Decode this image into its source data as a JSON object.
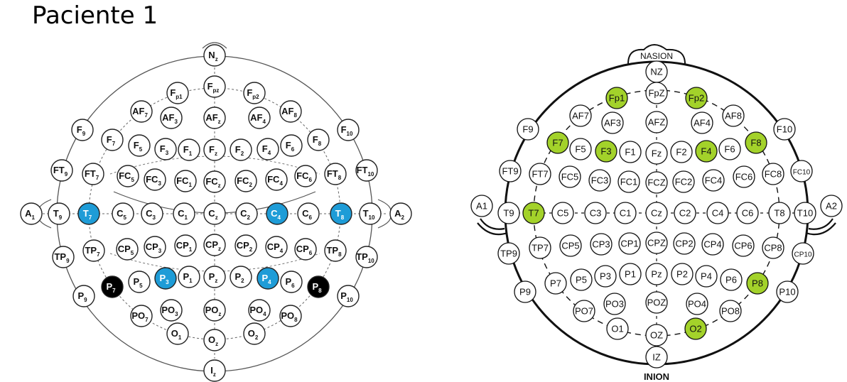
{
  "title": "Paciente 1",
  "colors": {
    "blue": "#1e9cd7",
    "black": "#000000",
    "green": "#a3d22a",
    "white": "#ffffff"
  },
  "left_map": {
    "highlighted_blue": [
      "T7",
      "C4",
      "T8",
      "P3",
      "P4"
    ],
    "highlighted_black": [
      "P7",
      "P8"
    ],
    "electrodes": [
      {
        "id": "Nz",
        "label": "N",
        "sub": "z"
      },
      {
        "id": "Fpz",
        "label": "F",
        "sub": "pz"
      },
      {
        "id": "Fp1",
        "label": "F",
        "sub": "p1"
      },
      {
        "id": "Fp2",
        "label": "F",
        "sub": "p2"
      },
      {
        "id": "AF7",
        "label": "AF",
        "sub": "7"
      },
      {
        "id": "AF3",
        "label": "AF",
        "sub": "3"
      },
      {
        "id": "AFz",
        "label": "AF",
        "sub": "z"
      },
      {
        "id": "AF4",
        "label": "AF",
        "sub": "4"
      },
      {
        "id": "AF8",
        "label": "AF",
        "sub": "8"
      },
      {
        "id": "F9",
        "label": "F",
        "sub": "9"
      },
      {
        "id": "F7",
        "label": "F",
        "sub": "7"
      },
      {
        "id": "F5",
        "label": "F",
        "sub": "5"
      },
      {
        "id": "F3",
        "label": "F",
        "sub": "3"
      },
      {
        "id": "F1",
        "label": "F",
        "sub": "1"
      },
      {
        "id": "Fz",
        "label": "F",
        "sub": "z"
      },
      {
        "id": "F2",
        "label": "F",
        "sub": "2"
      },
      {
        "id": "F4",
        "label": "F",
        "sub": "4"
      },
      {
        "id": "F6",
        "label": "F",
        "sub": "6"
      },
      {
        "id": "F8",
        "label": "F",
        "sub": "8"
      },
      {
        "id": "F10",
        "label": "F",
        "sub": "10"
      },
      {
        "id": "FT9",
        "label": "FT",
        "sub": "9"
      },
      {
        "id": "FT7",
        "label": "FT",
        "sub": "7"
      },
      {
        "id": "FC5",
        "label": "FC",
        "sub": "5"
      },
      {
        "id": "FC3",
        "label": "FC",
        "sub": "3"
      },
      {
        "id": "FC1",
        "label": "FC",
        "sub": "1"
      },
      {
        "id": "FCz",
        "label": "FC",
        "sub": "z"
      },
      {
        "id": "FC2",
        "label": "FC",
        "sub": "2"
      },
      {
        "id": "FC4",
        "label": "FC",
        "sub": "4"
      },
      {
        "id": "FC6",
        "label": "FC",
        "sub": "6"
      },
      {
        "id": "FT8",
        "label": "FT",
        "sub": "8"
      },
      {
        "id": "FT10",
        "label": "FT",
        "sub": "10"
      },
      {
        "id": "A1",
        "label": "A",
        "sub": "1"
      },
      {
        "id": "T9",
        "label": "T",
        "sub": "9"
      },
      {
        "id": "T7",
        "label": "T",
        "sub": "7"
      },
      {
        "id": "C5",
        "label": "C",
        "sub": "5"
      },
      {
        "id": "C3",
        "label": "C",
        "sub": "3"
      },
      {
        "id": "C1",
        "label": "C",
        "sub": "1"
      },
      {
        "id": "Cz",
        "label": "C",
        "sub": "z"
      },
      {
        "id": "C2",
        "label": "C",
        "sub": "2"
      },
      {
        "id": "C4",
        "label": "C",
        "sub": "4"
      },
      {
        "id": "C6",
        "label": "C",
        "sub": "6"
      },
      {
        "id": "T8",
        "label": "T",
        "sub": "8"
      },
      {
        "id": "T10",
        "label": "T",
        "sub": "10"
      },
      {
        "id": "A2",
        "label": "A",
        "sub": "2"
      },
      {
        "id": "TP9",
        "label": "TP",
        "sub": "9"
      },
      {
        "id": "TP7",
        "label": "TP",
        "sub": "7"
      },
      {
        "id": "CP5",
        "label": "CP",
        "sub": "5"
      },
      {
        "id": "CP3",
        "label": "CP",
        "sub": "3"
      },
      {
        "id": "CP1",
        "label": "CP",
        "sub": "1"
      },
      {
        "id": "CPz",
        "label": "CP",
        "sub": "z"
      },
      {
        "id": "CP2",
        "label": "CP",
        "sub": "2"
      },
      {
        "id": "CP4",
        "label": "CP",
        "sub": "4"
      },
      {
        "id": "CP6",
        "label": "CP",
        "sub": "6"
      },
      {
        "id": "TP8",
        "label": "TP",
        "sub": "8"
      },
      {
        "id": "TP10",
        "label": "TP",
        "sub": "10"
      },
      {
        "id": "P9",
        "label": "P",
        "sub": "9"
      },
      {
        "id": "P7",
        "label": "P",
        "sub": "7"
      },
      {
        "id": "P5",
        "label": "P",
        "sub": "5"
      },
      {
        "id": "P3",
        "label": "P",
        "sub": "3"
      },
      {
        "id": "P1",
        "label": "P",
        "sub": "1"
      },
      {
        "id": "Pz",
        "label": "P",
        "sub": "z"
      },
      {
        "id": "P2",
        "label": "P",
        "sub": "2"
      },
      {
        "id": "P4",
        "label": "P",
        "sub": "4"
      },
      {
        "id": "P6",
        "label": "P",
        "sub": "6"
      },
      {
        "id": "P8",
        "label": "P",
        "sub": "8"
      },
      {
        "id": "P10",
        "label": "P",
        "sub": "10"
      },
      {
        "id": "PO7",
        "label": "PO",
        "sub": "7"
      },
      {
        "id": "PO3",
        "label": "PO",
        "sub": "3"
      },
      {
        "id": "POz",
        "label": "PO",
        "sub": "z"
      },
      {
        "id": "PO4",
        "label": "PO",
        "sub": "4"
      },
      {
        "id": "PO8",
        "label": "PO",
        "sub": "8"
      },
      {
        "id": "O1",
        "label": "O",
        "sub": "1"
      },
      {
        "id": "Oz",
        "label": "O",
        "sub": "z"
      },
      {
        "id": "O2",
        "label": "O",
        "sub": "2"
      },
      {
        "id": "Iz",
        "label": "I",
        "sub": "z"
      }
    ]
  },
  "right_map": {
    "top_label": "NASION",
    "bottom_label": "INION",
    "highlighted_green": [
      "Fp1",
      "Fp2",
      "F7",
      "F3",
      "F4",
      "F8",
      "T7",
      "P8",
      "O2"
    ],
    "electrodes": [
      {
        "id": "NZ",
        "label": "NZ"
      },
      {
        "id": "Fp1",
        "label": "Fp1"
      },
      {
        "id": "FpZ",
        "label": "FpZ"
      },
      {
        "id": "Fp2",
        "label": "Fp2"
      },
      {
        "id": "AF7",
        "label": "AF7"
      },
      {
        "id": "AF3",
        "label": "AF3"
      },
      {
        "id": "AFZ",
        "label": "AFZ"
      },
      {
        "id": "AF4",
        "label": "AF4"
      },
      {
        "id": "AF8",
        "label": "AF8"
      },
      {
        "id": "F9",
        "label": "F9"
      },
      {
        "id": "F7",
        "label": "F7"
      },
      {
        "id": "F5",
        "label": "F5"
      },
      {
        "id": "F3",
        "label": "F3"
      },
      {
        "id": "F1",
        "label": "F1"
      },
      {
        "id": "Fz",
        "label": "Fz"
      },
      {
        "id": "F2",
        "label": "F2"
      },
      {
        "id": "F4",
        "label": "F4"
      },
      {
        "id": "F6",
        "label": "F6"
      },
      {
        "id": "F8",
        "label": "F8"
      },
      {
        "id": "F10",
        "label": "F10"
      },
      {
        "id": "FT9",
        "label": "FT9"
      },
      {
        "id": "FT7",
        "label": "FT7"
      },
      {
        "id": "FC5",
        "label": "FC5"
      },
      {
        "id": "FC3",
        "label": "FC3"
      },
      {
        "id": "FC1",
        "label": "FC1"
      },
      {
        "id": "FCZ",
        "label": "FCZ"
      },
      {
        "id": "FC2",
        "label": "FC2"
      },
      {
        "id": "FC4",
        "label": "FC4"
      },
      {
        "id": "FC6",
        "label": "FC6"
      },
      {
        "id": "FC8",
        "label": "FC8"
      },
      {
        "id": "FC10",
        "label": "FC10"
      },
      {
        "id": "A1",
        "label": "A1"
      },
      {
        "id": "T9",
        "label": "T9"
      },
      {
        "id": "T7",
        "label": "T7"
      },
      {
        "id": "C5",
        "label": "C5"
      },
      {
        "id": "C3",
        "label": "C3"
      },
      {
        "id": "C1",
        "label": "C1"
      },
      {
        "id": "Cz",
        "label": "Cz"
      },
      {
        "id": "C2",
        "label": "C2"
      },
      {
        "id": "C4",
        "label": "C4"
      },
      {
        "id": "C6",
        "label": "C6"
      },
      {
        "id": "T8",
        "label": "T8"
      },
      {
        "id": "T10",
        "label": "T10"
      },
      {
        "id": "A2",
        "label": "A2"
      },
      {
        "id": "TP9",
        "label": "TP9"
      },
      {
        "id": "TP7",
        "label": "TP7"
      },
      {
        "id": "CP5",
        "label": "CP5"
      },
      {
        "id": "CP3",
        "label": "CP3"
      },
      {
        "id": "CP1",
        "label": "CP1"
      },
      {
        "id": "CPZ",
        "label": "CPZ"
      },
      {
        "id": "CP2",
        "label": "CP2"
      },
      {
        "id": "CP4",
        "label": "CP4"
      },
      {
        "id": "CP6",
        "label": "CP6"
      },
      {
        "id": "CP8",
        "label": "CP8"
      },
      {
        "id": "CP10",
        "label": "CP10"
      },
      {
        "id": "P9",
        "label": "P9"
      },
      {
        "id": "P7",
        "label": "P7"
      },
      {
        "id": "P5",
        "label": "P5"
      },
      {
        "id": "P3",
        "label": "P3"
      },
      {
        "id": "P1",
        "label": "P1"
      },
      {
        "id": "Pz",
        "label": "Pz"
      },
      {
        "id": "P2",
        "label": "P2"
      },
      {
        "id": "P4",
        "label": "P4"
      },
      {
        "id": "P6",
        "label": "P6"
      },
      {
        "id": "P8",
        "label": "P8"
      },
      {
        "id": "P10",
        "label": "P10"
      },
      {
        "id": "PO7",
        "label": "PO7"
      },
      {
        "id": "PO3",
        "label": "PO3"
      },
      {
        "id": "POZ",
        "label": "POZ"
      },
      {
        "id": "PO4",
        "label": "PO4"
      },
      {
        "id": "PO8",
        "label": "PO8"
      },
      {
        "id": "O1",
        "label": "O1"
      },
      {
        "id": "OZ",
        "label": "OZ"
      },
      {
        "id": "O2",
        "label": "O2"
      },
      {
        "id": "IZ",
        "label": "IZ"
      }
    ]
  }
}
